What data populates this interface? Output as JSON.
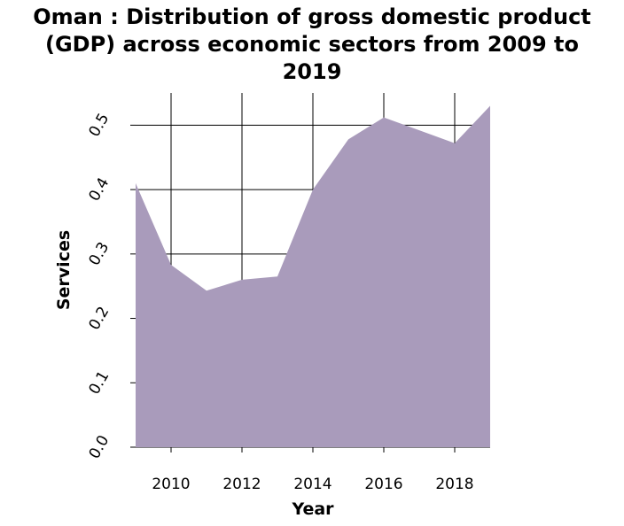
{
  "chart_data": {
    "type": "area",
    "title_lines": [
      "Oman : Distribution of gross domestic product",
      "(GDP) across economic sectors from 2009 to",
      "2019"
    ],
    "xlabel": "Year",
    "ylabel": "Services",
    "x": [
      2009,
      2010,
      2011,
      2012,
      2013,
      2014,
      2015,
      2016,
      2017,
      2018,
      2019
    ],
    "series": [
      {
        "values": [
          0.41,
          0.283,
          0.243,
          0.26,
          0.265,
          0.4,
          0.478,
          0.512,
          0.492,
          0.472,
          0.53
        ]
      }
    ],
    "xlim": [
      2009,
      2019
    ],
    "ylim": [
      0,
      0.55
    ],
    "xticks": [
      2010,
      2012,
      2014,
      2016,
      2018
    ],
    "xtick_labels": [
      "2010",
      "2012",
      "2014",
      "2016",
      "2018"
    ],
    "yticks": [
      0,
      0.1,
      0.2,
      0.3,
      0.4,
      0.5
    ],
    "ytick_labels": [
      "0.0",
      "0.1",
      "0.2",
      "0.3",
      "0.4",
      "0.5"
    ],
    "grid": true,
    "fill_color": "#a99bbb"
  }
}
